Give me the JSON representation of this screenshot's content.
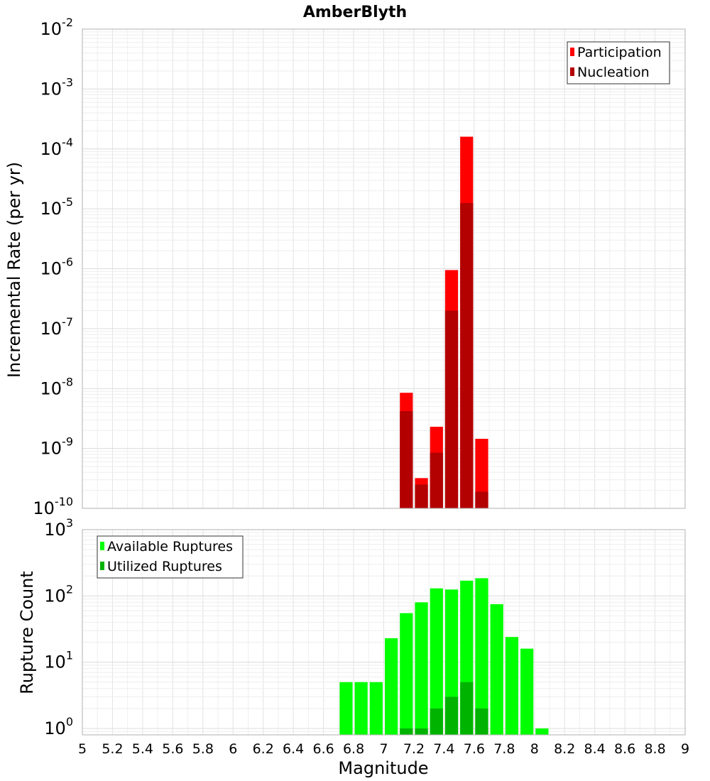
{
  "chart_data": [
    {
      "type": "bar",
      "title": "AmberBlyth",
      "ylabel": "Incremental Rate (per yr)",
      "xlim": [
        5,
        9
      ],
      "ylim": [
        1e-10,
        0.01
      ],
      "yscale": "log",
      "grid": true,
      "legend": "top-right",
      "bin_width": 0.1,
      "y_ticks": [
        {
          "base": "10",
          "exp": "-2",
          "value": 0.01
        },
        {
          "base": "10",
          "exp": "-3",
          "value": 0.001
        },
        {
          "base": "10",
          "exp": "-4",
          "value": 0.0001
        },
        {
          "base": "10",
          "exp": "-5",
          "value": 1e-05
        },
        {
          "base": "10",
          "exp": "-6",
          "value": 1e-06
        },
        {
          "base": "10",
          "exp": "-7",
          "value": 1e-07
        },
        {
          "base": "10",
          "exp": "-8",
          "value": 1e-08
        },
        {
          "base": "10",
          "exp": "-9",
          "value": 1e-09
        },
        {
          "base": "10",
          "exp": "-10",
          "value": 1e-10
        }
      ],
      "series": [
        {
          "name": "Participation",
          "color": "#ff0000",
          "x": [
            7.15,
            7.25,
            7.35,
            7.45,
            7.55,
            7.65
          ],
          "values": [
            8.5e-09,
            3.2e-10,
            2.3e-09,
            9.5e-07,
            0.00016,
            1.45e-09
          ]
        },
        {
          "name": "Nucleation",
          "color": "#b30000",
          "x": [
            7.15,
            7.25,
            7.35,
            7.45,
            7.55,
            7.65
          ],
          "values": [
            4.2e-09,
            2.5e-10,
            8.5e-10,
            2e-07,
            1.25e-05,
            1.9e-10
          ]
        }
      ]
    },
    {
      "type": "bar",
      "ylabel": "Rupture Count",
      "xlabel": "Magnitude",
      "xlim": [
        5,
        9
      ],
      "ylim": [
        0.8,
        1000
      ],
      "yscale": "log",
      "grid": true,
      "legend": "top-left",
      "bin_width": 0.1,
      "x_ticks": [
        "5",
        "5.2",
        "5.4",
        "5.6",
        "5.8",
        "6",
        "6.2",
        "6.4",
        "6.6",
        "6.8",
        "7",
        "7.2",
        "7.4",
        "7.6",
        "7.8",
        "8",
        "8.2",
        "8.4",
        "8.6",
        "8.8",
        "9"
      ],
      "y_ticks": [
        {
          "base": "10",
          "exp": "3",
          "value": 1000
        },
        {
          "base": "10",
          "exp": "2",
          "value": 100
        },
        {
          "base": "10",
          "exp": "1",
          "value": 10
        },
        {
          "base": "10",
          "exp": "0",
          "value": 1
        }
      ],
      "series": [
        {
          "name": "Available Ruptures",
          "color": "#00ff00",
          "x": [
            6.75,
            6.85,
            6.95,
            7.05,
            7.15,
            7.25,
            7.35,
            7.45,
            7.55,
            7.65,
            7.75,
            7.85,
            7.95,
            8.05
          ],
          "values": [
            5,
            5,
            5,
            23,
            55,
            80,
            130,
            125,
            170,
            185,
            75,
            24,
            16,
            1
          ]
        },
        {
          "name": "Utilized Ruptures",
          "color": "#00b300",
          "x": [
            7.15,
            7.25,
            7.35,
            7.45,
            7.55,
            7.65
          ],
          "values": [
            1,
            1,
            2,
            3,
            5,
            2
          ]
        }
      ]
    }
  ]
}
